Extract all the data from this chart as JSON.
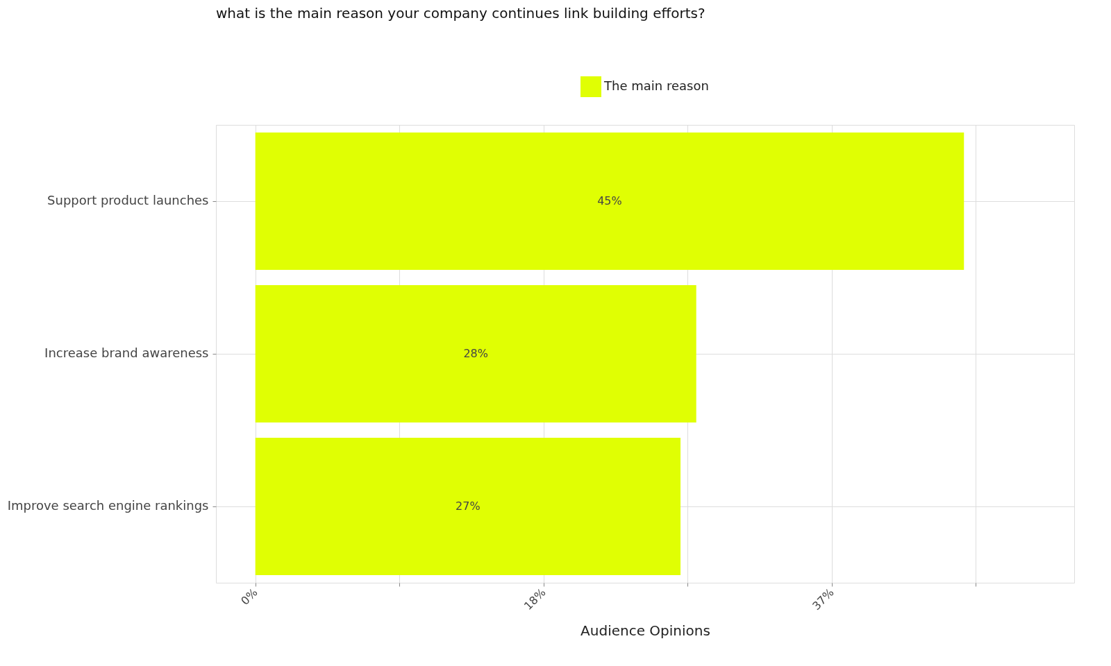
{
  "chart_data": {
    "type": "bar",
    "orientation": "horizontal",
    "title": "what is the main reason your company continues link building efforts?",
    "xlabel": "Audience Opinions",
    "categories": [
      "Support product launches",
      "Increase brand awareness",
      "Improve search engine rankings"
    ],
    "series": [
      {
        "name": "The main reason",
        "color": "#e0ff03",
        "values": [
          45,
          28,
          27
        ]
      }
    ],
    "value_labels": [
      "45%",
      "28%",
      "27%"
    ],
    "xlim": [
      -2.5,
      52
    ],
    "xticks": [
      {
        "value": 0,
        "label": "0%"
      },
      {
        "value": 9.15,
        "label": null
      },
      {
        "value": 18.3,
        "label": "18%"
      },
      {
        "value": 27.45,
        "label": null
      },
      {
        "value": 36.6,
        "label": "37%"
      },
      {
        "value": 45.75,
        "label": null
      }
    ],
    "grid": true,
    "legend": "top"
  }
}
